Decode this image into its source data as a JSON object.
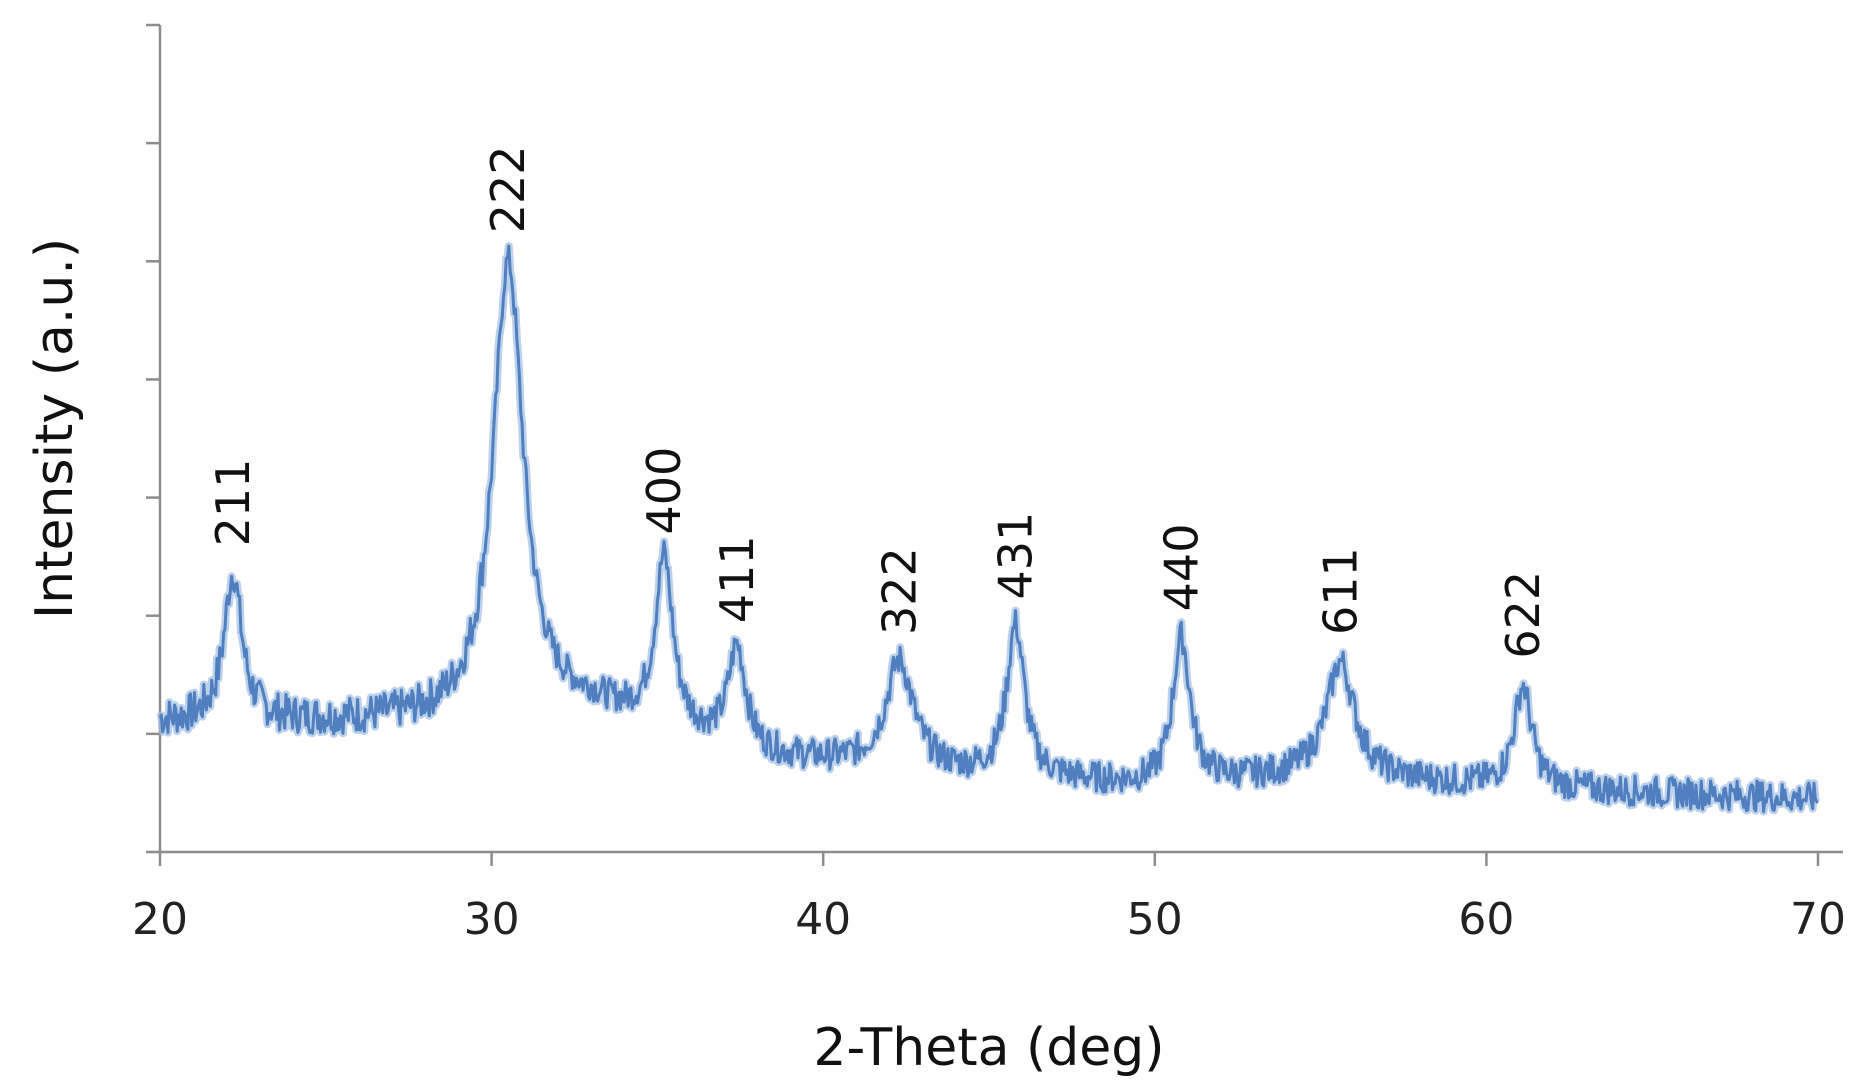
{
  "chart_data": {
    "type": "line",
    "title": "",
    "xlabel": "2-Theta (deg)",
    "ylabel": "Intensity (a.u.)",
    "xlim": [
      20,
      70
    ],
    "ylim": [
      0,
      7
    ],
    "x_ticks": [
      20,
      30,
      40,
      50,
      60,
      70
    ],
    "y_tick_labels_shown": false,
    "grid": false,
    "legend": "none",
    "series_color": "#4f7fbf",
    "baseline_points": [
      {
        "x": 20,
        "y": 1.1
      },
      {
        "x": 29,
        "y": 1.1
      },
      {
        "x": 33,
        "y": 1.2
      },
      {
        "x": 38,
        "y": 0.8
      },
      {
        "x": 44,
        "y": 0.65
      },
      {
        "x": 50,
        "y": 0.55
      },
      {
        "x": 55,
        "y": 0.65
      },
      {
        "x": 60,
        "y": 0.55
      },
      {
        "x": 70,
        "y": 0.45
      }
    ],
    "peaks": [
      {
        "label": "211",
        "x": 22.2,
        "y": 2.35
      },
      {
        "label": "222",
        "x": 30.5,
        "y": 5.0
      },
      {
        "label": "400",
        "x": 35.2,
        "y": 2.45
      },
      {
        "label": "411",
        "x": 37.4,
        "y": 1.7
      },
      {
        "label": "322",
        "x": 42.3,
        "y": 1.6
      },
      {
        "label": "431",
        "x": 45.8,
        "y": 1.9
      },
      {
        "label": "440",
        "x": 50.8,
        "y": 1.8
      },
      {
        "label": "611",
        "x": 55.6,
        "y": 1.6
      },
      {
        "label": "622",
        "x": 61.1,
        "y": 1.4
      }
    ]
  }
}
